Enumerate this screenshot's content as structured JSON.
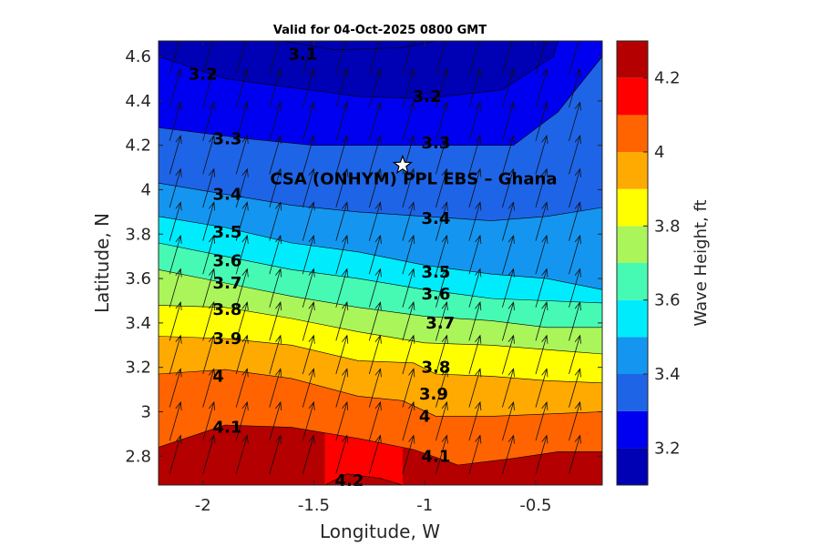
{
  "chart_data": {
    "type": "heatmap",
    "subtype": "filled-contour-with-wind-arrows",
    "title": "Valid for 04-Oct-2025 0800 GMT",
    "xlabel": "Longitude, W",
    "ylabel": "Latitude, N",
    "xlim": [
      -2.2,
      -0.2
    ],
    "ylim": [
      2.67,
      4.67
    ],
    "x_ticks": [
      -2,
      -1.5,
      -1,
      -0.5
    ],
    "x_tick_labels": [
      "-2",
      "-1.5",
      "-1",
      "-0.5"
    ],
    "y_ticks": [
      2.8,
      3.0,
      3.2,
      3.4,
      3.6,
      3.8,
      4.0,
      4.2,
      4.4,
      4.6
    ],
    "y_tick_labels": [
      "2.8",
      "3",
      "3.2",
      "3.4",
      "3.6",
      "3.8",
      "4",
      "4.2",
      "4.4",
      "4.6"
    ],
    "colorbar": {
      "label": "Wave Height, ft",
      "range": [
        3.1,
        4.3
      ],
      "ticks": [
        3.2,
        3.4,
        3.6,
        3.8,
        4.0,
        4.2
      ],
      "tick_labels": [
        "3.2",
        "3.4",
        "3.6",
        "3.8",
        "4",
        "4.2"
      ],
      "levels": [
        3.1,
        3.2,
        3.3,
        3.4,
        3.5,
        3.6,
        3.7,
        3.8,
        3.9,
        4.0,
        4.1,
        4.2,
        4.3
      ],
      "colors": [
        "#0000b4",
        "#0000f0",
        "#1e64e6",
        "#1496f0",
        "#00ecfc",
        "#46fab4",
        "#aaf55a",
        "#ffff00",
        "#ffaa00",
        "#ff6400",
        "#ff0000",
        "#b40000"
      ]
    },
    "contour_lines": [
      {
        "level": 3.1,
        "label": "3.1",
        "points": [
          [
            -1.65,
            4.67
          ],
          [
            -1.4,
            4.63
          ],
          [
            -1.1,
            4.64
          ],
          [
            -0.95,
            4.67
          ]
        ]
      },
      {
        "level": 3.2,
        "label": "3.2",
        "points": [
          [
            -2.2,
            4.6
          ],
          [
            -1.9,
            4.5
          ],
          [
            -1.6,
            4.46
          ],
          [
            -1.3,
            4.42
          ],
          [
            -1.0,
            4.41
          ],
          [
            -0.65,
            4.45
          ],
          [
            -0.42,
            4.6
          ],
          [
            -0.4,
            4.67
          ]
        ]
      },
      {
        "level": 3.3,
        "label": "3.3",
        "points": [
          [
            -2.2,
            4.28
          ],
          [
            -1.8,
            4.23
          ],
          [
            -1.5,
            4.2
          ],
          [
            -1.2,
            4.2
          ],
          [
            -0.9,
            4.2
          ],
          [
            -0.6,
            4.2
          ],
          [
            -0.4,
            4.35
          ],
          [
            -0.2,
            4.6
          ]
        ]
      },
      {
        "level": 3.4,
        "label": "3.4",
        "points": [
          [
            -2.2,
            4.03
          ],
          [
            -1.9,
            3.98
          ],
          [
            -1.6,
            3.93
          ],
          [
            -1.3,
            3.9
          ],
          [
            -1.0,
            3.88
          ],
          [
            -0.7,
            3.86
          ],
          [
            -0.45,
            3.88
          ],
          [
            -0.2,
            3.92
          ]
        ]
      },
      {
        "level": 3.5,
        "label": "3.5",
        "points": [
          [
            -2.2,
            3.88
          ],
          [
            -1.9,
            3.83
          ],
          [
            -1.6,
            3.76
          ],
          [
            -1.3,
            3.72
          ],
          [
            -1.0,
            3.66
          ],
          [
            -0.7,
            3.62
          ],
          [
            -0.45,
            3.6
          ],
          [
            -0.2,
            3.55
          ]
        ]
      },
      {
        "level": 3.6,
        "label": "3.6",
        "points": [
          [
            -2.2,
            3.76
          ],
          [
            -1.9,
            3.7
          ],
          [
            -1.6,
            3.64
          ],
          [
            -1.3,
            3.6
          ],
          [
            -1.0,
            3.55
          ],
          [
            -0.7,
            3.51
          ],
          [
            -0.45,
            3.5
          ],
          [
            -0.2,
            3.49
          ]
        ]
      },
      {
        "level": 3.7,
        "label": "3.7",
        "points": [
          [
            -2.2,
            3.64
          ],
          [
            -1.9,
            3.58
          ],
          [
            -1.6,
            3.52
          ],
          [
            -1.3,
            3.47
          ],
          [
            -1.0,
            3.43
          ],
          [
            -0.7,
            3.41
          ],
          [
            -0.45,
            3.38
          ],
          [
            -0.2,
            3.38
          ]
        ]
      },
      {
        "level": 3.8,
        "label": "3.8",
        "points": [
          [
            -2.2,
            3.48
          ],
          [
            -1.9,
            3.47
          ],
          [
            -1.6,
            3.42
          ],
          [
            -1.3,
            3.36
          ],
          [
            -1.0,
            3.31
          ],
          [
            -0.7,
            3.3
          ],
          [
            -0.45,
            3.28
          ],
          [
            -0.2,
            3.26
          ]
        ]
      },
      {
        "level": 3.9,
        "label": "3.9",
        "points": [
          [
            -2.2,
            3.34
          ],
          [
            -1.9,
            3.33
          ],
          [
            -1.6,
            3.3
          ],
          [
            -1.3,
            3.23
          ],
          [
            -1.05,
            3.22
          ],
          [
            -0.95,
            3.17
          ],
          [
            -0.7,
            3.16
          ],
          [
            -0.45,
            3.14
          ],
          [
            -0.2,
            3.13
          ]
        ]
      },
      {
        "level": 4.0,
        "label": "4",
        "points": [
          [
            -2.2,
            3.17
          ],
          [
            -1.9,
            3.19
          ],
          [
            -1.6,
            3.15
          ],
          [
            -1.3,
            3.07
          ],
          [
            -1.1,
            3.05
          ],
          [
            -0.95,
            2.98
          ],
          [
            -0.7,
            2.98
          ],
          [
            -0.45,
            2.99
          ],
          [
            -0.2,
            3.0
          ]
        ]
      },
      {
        "level": 4.1,
        "label": "4.1",
        "points": [
          [
            -2.2,
            2.84
          ],
          [
            -1.9,
            2.94
          ],
          [
            -1.6,
            2.93
          ],
          [
            -1.3,
            2.88
          ],
          [
            -1.05,
            2.83
          ],
          [
            -0.85,
            2.76
          ],
          [
            -0.6,
            2.79
          ],
          [
            -0.4,
            2.82
          ],
          [
            -0.2,
            2.82
          ]
        ]
      },
      {
        "level": 4.2,
        "label": "4.2",
        "points": [
          [
            -1.45,
            2.67
          ],
          [
            -1.35,
            2.72
          ],
          [
            -1.2,
            2.7
          ],
          [
            -1.1,
            2.67
          ]
        ]
      }
    ],
    "contour_label_positions": [
      {
        "label": "3.1",
        "lon": -1.55,
        "lat": 4.61
      },
      {
        "label": "3.2",
        "lon": -2.0,
        "lat": 4.52
      },
      {
        "label": "3.2",
        "lon": -0.99,
        "lat": 4.42
      },
      {
        "label": "3.3",
        "lon": -1.89,
        "lat": 4.23
      },
      {
        "label": "3.3",
        "lon": -0.95,
        "lat": 4.21
      },
      {
        "label": "3.4",
        "lon": -1.89,
        "lat": 3.98
      },
      {
        "label": "3.4",
        "lon": -0.95,
        "lat": 3.87
      },
      {
        "label": "3.5",
        "lon": -1.89,
        "lat": 3.81
      },
      {
        "label": "3.5",
        "lon": -0.95,
        "lat": 3.63
      },
      {
        "label": "3.6",
        "lon": -1.89,
        "lat": 3.68
      },
      {
        "label": "3.6",
        "lon": -0.95,
        "lat": 3.53
      },
      {
        "label": "3.7",
        "lon": -1.89,
        "lat": 3.58
      },
      {
        "label": "3.7",
        "lon": -0.93,
        "lat": 3.4
      },
      {
        "label": "3.8",
        "lon": -1.89,
        "lat": 3.46
      },
      {
        "label": "3.8",
        "lon": -0.95,
        "lat": 3.2
      },
      {
        "label": "3.9",
        "lon": -1.89,
        "lat": 3.33
      },
      {
        "label": "3.9",
        "lon": -0.96,
        "lat": 3.08
      },
      {
        "label": "4",
        "lon": -1.93,
        "lat": 3.16
      },
      {
        "label": "4",
        "lon": -1.0,
        "lat": 2.98
      },
      {
        "label": "4.1",
        "lon": -1.89,
        "lat": 2.93
      },
      {
        "label": "4.1",
        "lon": -0.95,
        "lat": 2.8
      },
      {
        "label": "4.2",
        "lon": -1.34,
        "lat": 2.69
      }
    ],
    "wind_arrows": {
      "direction_deg_from_north": 16,
      "lon_grid": [
        -2.15,
        -2.0,
        -1.85,
        -1.7,
        -1.55,
        -1.4,
        -1.25,
        -1.1,
        -0.95,
        -0.8,
        -0.65,
        -0.5,
        -0.35
      ],
      "lat_grid": [
        2.72,
        2.87,
        3.02,
        3.17,
        3.32,
        3.47,
        3.62,
        3.77,
        3.92,
        4.07,
        4.22,
        4.37,
        4.52
      ]
    },
    "site_marker": {
      "name": "CSA (ONHYM) PPL EBS  – Ghana",
      "lon": -1.1,
      "lat": 4.11,
      "symbol": "star"
    }
  }
}
